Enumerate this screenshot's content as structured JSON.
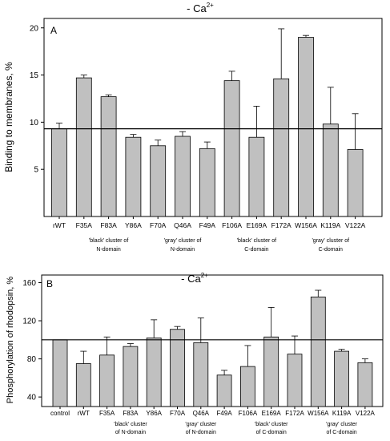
{
  "chart_data": [
    {
      "type": "bar",
      "panel_label": "A",
      "title": "- Ca",
      "title_sup": "2+",
      "ylabel": "Binding to membranes, %",
      "xlabel": "",
      "ylim": [
        0,
        21
      ],
      "yticks": [
        5,
        10,
        15,
        20
      ],
      "reference_line": 9.3,
      "grid": false,
      "categories": [
        "rWT",
        "F35A",
        "F83A",
        "Y86A",
        "F70A",
        "Q46A",
        "F49A",
        "F106A",
        "E169A",
        "F172A",
        "W156A",
        "K119A",
        "V122A"
      ],
      "values": [
        9.3,
        14.7,
        12.7,
        8.4,
        7.5,
        8.5,
        7.2,
        14.4,
        8.4,
        14.6,
        19.0,
        9.8,
        7.1
      ],
      "errors": [
        0.6,
        0.3,
        0.2,
        0.3,
        0.6,
        0.5,
        0.7,
        1.0,
        3.3,
        5.3,
        0.2,
        3.9,
        3.8
      ],
      "groups": [
        {
          "lines": [
            "'black' cluster of",
            "N-domain"
          ],
          "from": 1,
          "to": 3
        },
        {
          "lines": [
            "'gray' cluster of",
            "N-domain"
          ],
          "from": 4,
          "to": 6
        },
        {
          "lines": [
            "'black' cluster of",
            "C-domain"
          ],
          "from": 7,
          "to": 9
        },
        {
          "lines": [
            "'gray' cluster of",
            "C-domain"
          ],
          "from": 10,
          "to": 12
        }
      ],
      "colors": {
        "bar": "#c0c0c0",
        "stroke": "#000000"
      }
    },
    {
      "type": "bar",
      "panel_label": "B",
      "title": "- Ca",
      "title_sup": "2+",
      "ylabel": "Phosphorylation of rhodopsin, %",
      "xlabel": "",
      "ylim": [
        30,
        168
      ],
      "yticks": [
        40,
        80,
        120,
        160
      ],
      "reference_line": 100,
      "grid": false,
      "categories": [
        "control",
        "rWT",
        "F35A",
        "F83A",
        "Y86A",
        "F70A",
        "Q46A",
        "F49A",
        "F106A",
        "E169A",
        "F172A",
        "W156A",
        "K119A",
        "V122A"
      ],
      "values": [
        100,
        75,
        84,
        93,
        102,
        111,
        97,
        63,
        72,
        103,
        85,
        145,
        88,
        76
      ],
      "errors": [
        0,
        13,
        19,
        3,
        19,
        3,
        26,
        5,
        22,
        31,
        19,
        7,
        2,
        4
      ],
      "groups": [
        {
          "lines": [
            "'black' cluster",
            "of N-domain"
          ],
          "from": 2,
          "to": 4
        },
        {
          "lines": [
            "'gray' cluster",
            "of N-domain"
          ],
          "from": 5,
          "to": 7
        },
        {
          "lines": [
            "'black' cluster",
            "of C-domain"
          ],
          "from": 8,
          "to": 10
        },
        {
          "lines": [
            "'gray' cluster",
            "of C-domain"
          ],
          "from": 11,
          "to": 13
        }
      ],
      "colors": {
        "bar": "#c0c0c0",
        "stroke": "#000000"
      }
    }
  ]
}
